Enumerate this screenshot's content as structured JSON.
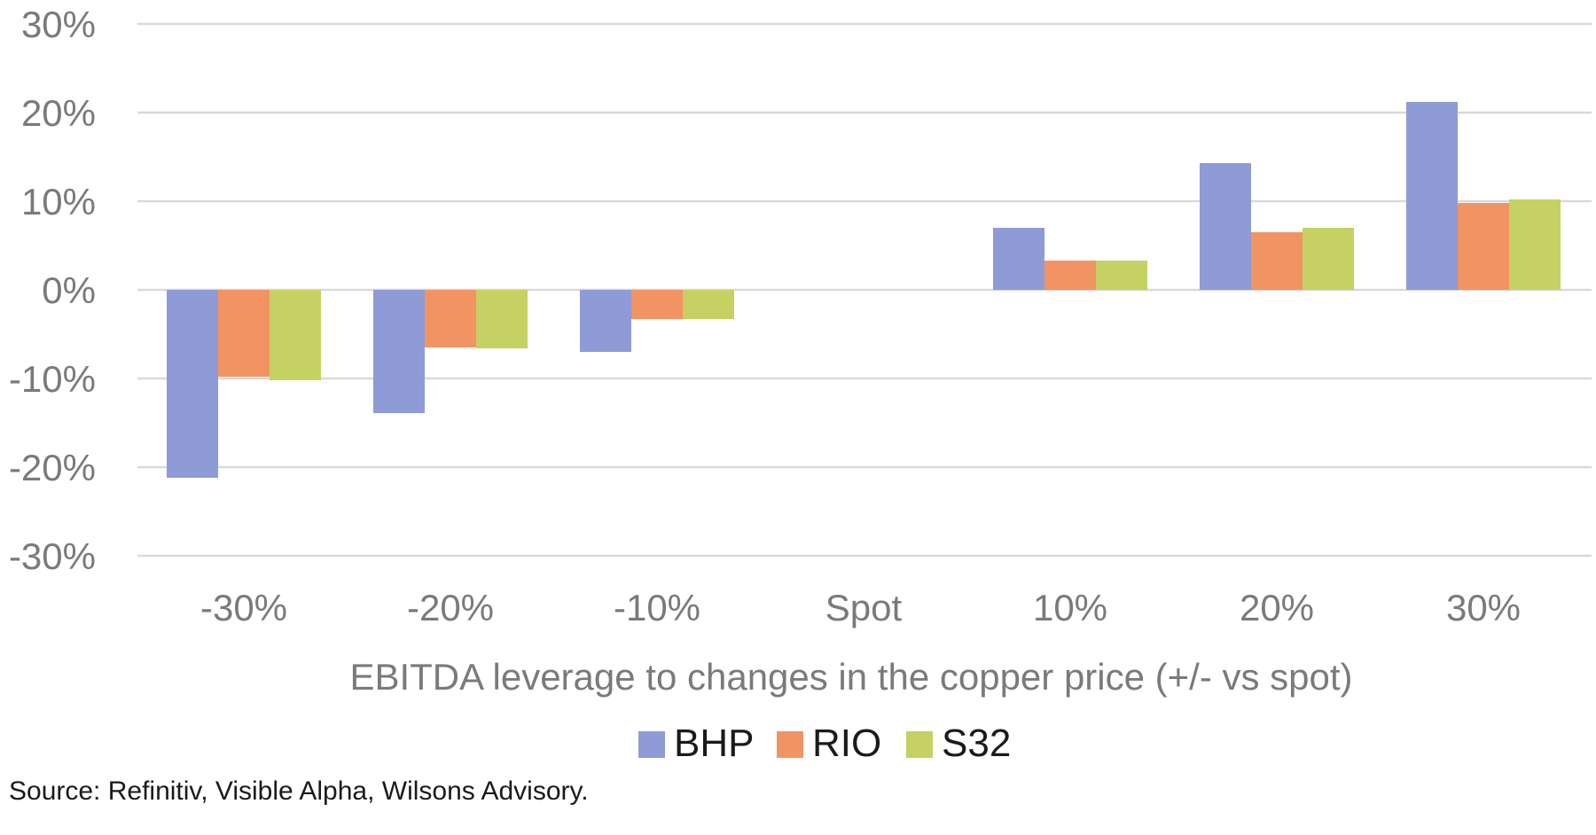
{
  "chart_data": {
    "type": "bar",
    "title": "",
    "xlabel": "EBITDA leverage to changes in the copper price (+/- vs spot)",
    "ylabel": "",
    "categories": [
      "-30%",
      "-20%",
      "-10%",
      "Spot",
      "10%",
      "20%",
      "30%"
    ],
    "series": [
      {
        "name": "BHP",
        "color": "#8e9bd6",
        "values": [
          -21.2,
          -13.9,
          -7.0,
          0,
          7.0,
          14.3,
          21.2
        ]
      },
      {
        "name": "RIO",
        "color": "#f29364",
        "values": [
          -9.8,
          -6.5,
          -3.3,
          0,
          3.3,
          6.5,
          9.8
        ]
      },
      {
        "name": "S32",
        "color": "#c5d163",
        "values": [
          -10.2,
          -6.6,
          -3.3,
          0,
          3.3,
          7.0,
          10.2
        ]
      }
    ],
    "ylim": [
      -30,
      30
    ],
    "yticks": [
      -30,
      -20,
      -10,
      0,
      10,
      20,
      30
    ],
    "ytick_labels": [
      "-30%",
      "-20%",
      "-10%",
      "0%",
      "10%",
      "20%",
      "30%"
    ],
    "grid": true,
    "legend_position": "bottom"
  },
  "source_note": "Source: Refinitiv, Visible Alpha, Wilsons Advisory."
}
